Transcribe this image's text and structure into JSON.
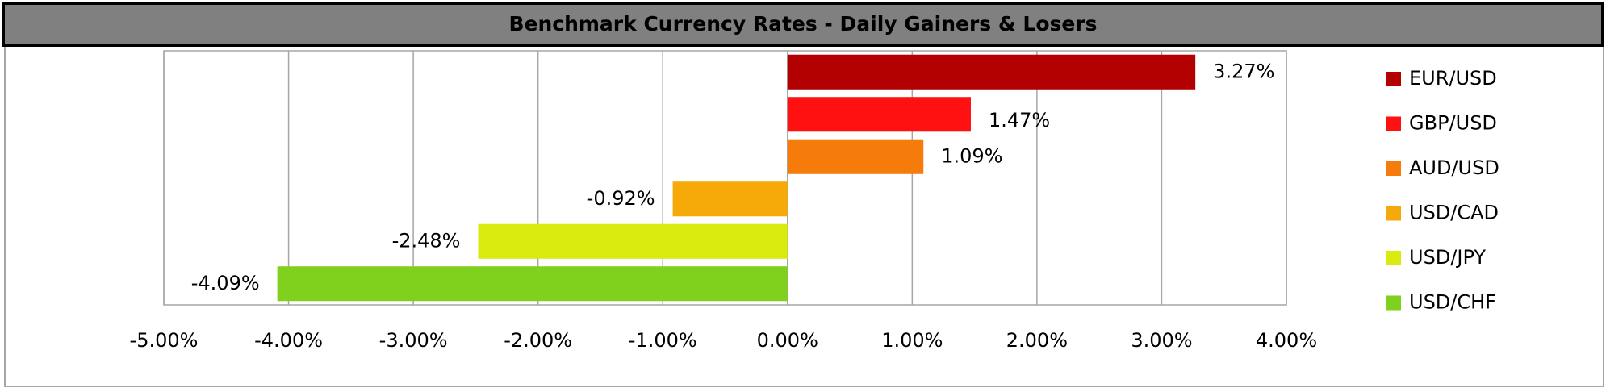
{
  "chart_data": {
    "type": "hbar",
    "title": "Benchmark Currency Rates - Daily Gainers & Losers",
    "categories": [
      "EUR/USD",
      "GBP/USD",
      "AUD/USD",
      "USD/CAD",
      "USD/JPY",
      "USD/CHF"
    ],
    "values": [
      3.27,
      1.47,
      1.09,
      -0.92,
      -2.48,
      -4.09
    ],
    "value_labels": [
      "3.27%",
      "1.47%",
      "1.09%",
      "-0.92%",
      "-2.48%",
      "-4.09%"
    ],
    "colors": [
      "#b30000",
      "#ff1111",
      "#f57c0a",
      "#f5aa0a",
      "#d8ea0e",
      "#7fd11e"
    ],
    "xlim": [
      -5,
      4
    ],
    "xticks": [
      {
        "value": -5,
        "label": "-5.00%"
      },
      {
        "value": -4,
        "label": "-4.00%"
      },
      {
        "value": -3,
        "label": "-3.00%"
      },
      {
        "value": -2,
        "label": "-2.00%"
      },
      {
        "value": -1,
        "label": "-1.00%"
      },
      {
        "value": 0,
        "label": "0.00%"
      },
      {
        "value": 1,
        "label": "1.00%"
      },
      {
        "value": 2,
        "label": "2.00%"
      },
      {
        "value": 3,
        "label": "3.00%"
      },
      {
        "value": 4,
        "label": "4.00%"
      }
    ],
    "grid": true,
    "legend": "right"
  }
}
